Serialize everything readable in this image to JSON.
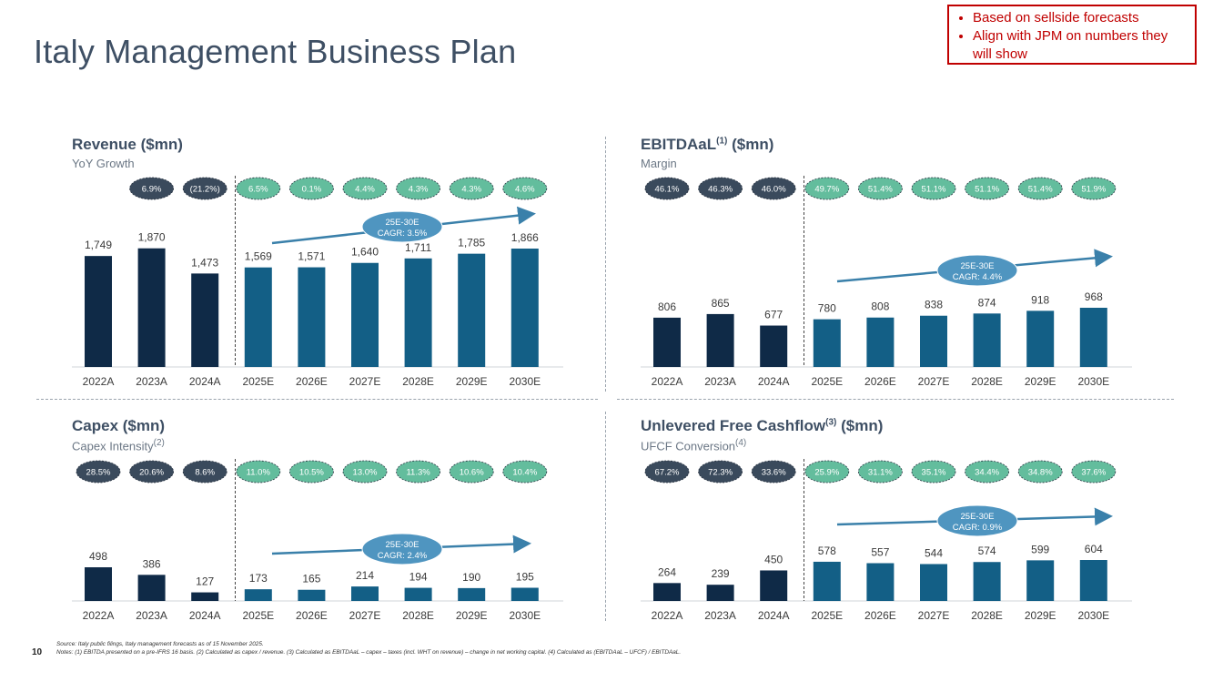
{
  "title": "Italy Management Business Plan",
  "callout": [
    "Based on sellside forecasts",
    "Align with JPM on numbers they will show"
  ],
  "page_number": "10",
  "footnote": {
    "source": "Source: Italy public filings, Italy management forecasts as of 15 November 2025.",
    "notes": "Notes: (1) EBITDA presented on a pre-IFRS 16 basis. (2) Calculated as capex / revenue. (3) Calculated as EBITDAaL – capex – taxes (incl. WHT on revenue) – change in net working capital. (4) Calculated as (EBITDAaL – UFCF) / EBITDAaL."
  },
  "colors": {
    "actual": "#0f2a47",
    "forecast": "#135f86",
    "pill_actual": "#3a4a5c",
    "pill_forecast": "#63bd9d",
    "cagr": "#4f95c0",
    "arrow": "#3a80aa"
  },
  "chart_data": [
    {
      "type": "bar",
      "title": "Revenue ($mn)",
      "title_sup": "",
      "subtitle": "YoY Growth",
      "subtitle_sup": "",
      "categories": [
        "2022A",
        "2023A",
        "2024A",
        "2025E",
        "2026E",
        "2027E",
        "2028E",
        "2029E",
        "2030E"
      ],
      "values": [
        1749,
        1870,
        1473,
        1569,
        1571,
        1640,
        1711,
        1785,
        1866
      ],
      "value_labels": [
        "1,749",
        "1,870",
        "1,473",
        "1,569",
        "1,571",
        "1,640",
        "1,711",
        "1,785",
        "1,866"
      ],
      "ratios": [
        "6.9%",
        "(21.2%)",
        "6.5%",
        "0.1%",
        "4.4%",
        "4.3%",
        "4.3%",
        "4.6%"
      ],
      "actual_count": 3,
      "ratio_start": 1,
      "cagr": {
        "line1": "25E-30E",
        "line2": "CAGR: 3.5%"
      }
    },
    {
      "type": "bar",
      "title": "EBITDAaL",
      "title_sup": "(1)",
      "title_suffix": " ($mn)",
      "subtitle": "Margin",
      "subtitle_sup": "",
      "categories": [
        "2022A",
        "2023A",
        "2024A",
        "2025E",
        "2026E",
        "2027E",
        "2028E",
        "2029E",
        "2030E"
      ],
      "values": [
        806,
        865,
        677,
        780,
        808,
        838,
        874,
        918,
        968
      ],
      "value_labels": [
        "806",
        "865",
        "677",
        "780",
        "808",
        "838",
        "874",
        "918",
        "968"
      ],
      "ratios": [
        "46.1%",
        "46.3%",
        "46.0%",
        "49.7%",
        "51.4%",
        "51.1%",
        "51.1%",
        "51.4%",
        "51.9%"
      ],
      "actual_count": 3,
      "ratio_start": 0,
      "cagr": {
        "line1": "25E-30E",
        "line2": "CAGR: 4.4%"
      }
    },
    {
      "type": "bar",
      "title": "Capex ($mn)",
      "title_sup": "",
      "subtitle": "Capex Intensity",
      "subtitle_sup": "(2)",
      "categories": [
        "2022A",
        "2023A",
        "2024A",
        "2025E",
        "2026E",
        "2027E",
        "2028E",
        "2029E",
        "2030E"
      ],
      "values": [
        498,
        386,
        127,
        173,
        165,
        214,
        194,
        190,
        195
      ],
      "value_labels": [
        "498",
        "386",
        "127",
        "173",
        "165",
        "214",
        "194",
        "190",
        "195"
      ],
      "ratios": [
        "28.5%",
        "20.6%",
        "8.6%",
        "11.0%",
        "10.5%",
        "13.0%",
        "11.3%",
        "10.6%",
        "10.4%"
      ],
      "actual_count": 3,
      "ratio_start": 0,
      "cagr": {
        "line1": "25E-30E",
        "line2": "CAGR: 2.4%"
      }
    },
    {
      "type": "bar",
      "title": "Unlevered Free Cashflow",
      "title_sup": "(3)",
      "title_suffix": " ($mn)",
      "subtitle": "UFCF Conversion",
      "subtitle_sup": "(4)",
      "categories": [
        "2022A",
        "2023A",
        "2024A",
        "2025E",
        "2026E",
        "2027E",
        "2028E",
        "2029E",
        "2030E"
      ],
      "values": [
        264,
        239,
        450,
        578,
        557,
        544,
        574,
        599,
        604
      ],
      "value_labels": [
        "264",
        "239",
        "450",
        "578",
        "557",
        "544",
        "574",
        "599",
        "604"
      ],
      "ratios": [
        "67.2%",
        "72.3%",
        "33.6%",
        "25.9%",
        "31.1%",
        "35.1%",
        "34.4%",
        "34.8%",
        "37.6%"
      ],
      "actual_count": 3,
      "ratio_start": 0,
      "cagr": {
        "line1": "25E-30E",
        "line2": "CAGR: 0.9%"
      }
    }
  ]
}
